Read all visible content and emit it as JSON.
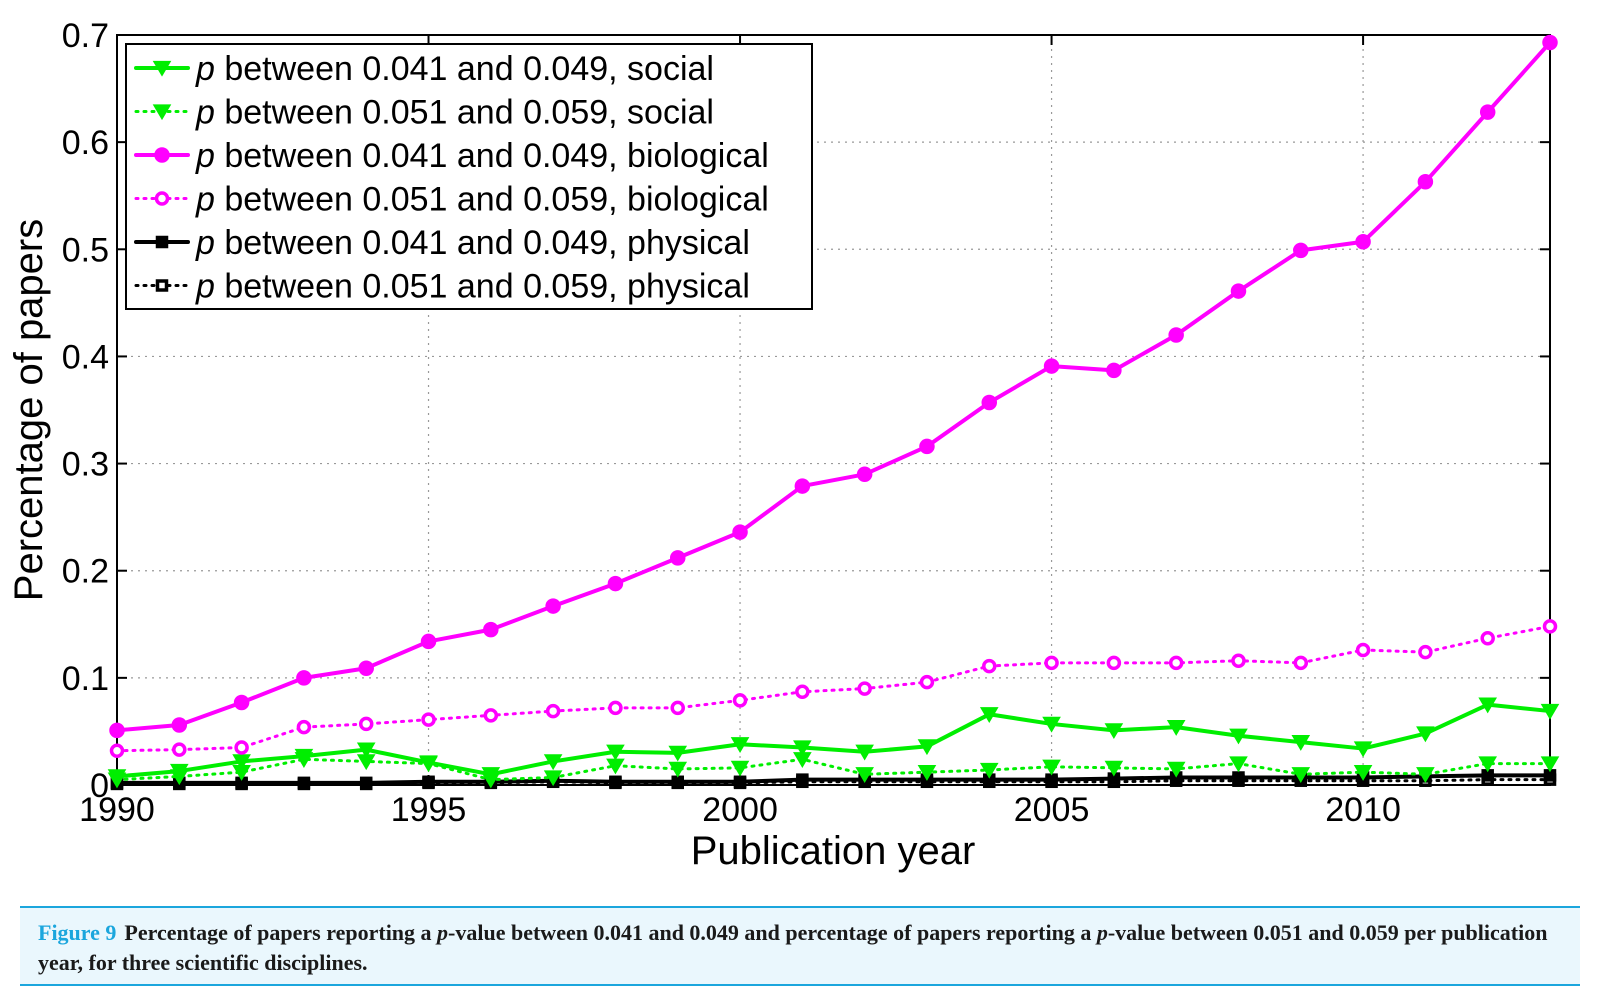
{
  "chart_data": {
    "type": "line",
    "xlabel": "Publication year",
    "ylabel": "Percentage of papers",
    "xlim": [
      1990,
      2013
    ],
    "ylim": [
      0,
      0.7
    ],
    "xticks": [
      "1990",
      "1995",
      "2000",
      "2005",
      "2010"
    ],
    "yticks": [
      "0",
      "0.1",
      "0.2",
      "0.3",
      "0.4",
      "0.5",
      "0.6",
      "0.7"
    ],
    "grid": true,
    "legend_position": "top-left",
    "x": [
      1990,
      1991,
      1992,
      1993,
      1994,
      1995,
      1996,
      1997,
      1998,
      1999,
      2000,
      2001,
      2002,
      2003,
      2004,
      2005,
      2006,
      2007,
      2008,
      2009,
      2010,
      2011,
      2012,
      2013
    ],
    "series": [
      {
        "name": "p between 0.041 and 0.049, social",
        "name_italic": "p",
        "name_rest": " between 0.041 and 0.049, social",
        "color": "#00ee00",
        "line": "solid",
        "marker": "triangle-down",
        "filled": true,
        "values": [
          0.008,
          0.013,
          0.022,
          0.027,
          0.033,
          0.021,
          0.01,
          0.022,
          0.031,
          0.03,
          0.038,
          0.035,
          0.031,
          0.036,
          0.066,
          0.057,
          0.051,
          0.054,
          0.046,
          0.04,
          0.034,
          0.048,
          0.075,
          0.069
        ]
      },
      {
        "name": "p between 0.051 and 0.059, social",
        "name_italic": "p",
        "name_rest": " between 0.051 and 0.059, social",
        "color": "#00ee00",
        "line": "dotted",
        "marker": "triangle-down",
        "filled": true,
        "values": [
          0.005,
          0.008,
          0.012,
          0.024,
          0.022,
          0.02,
          0.005,
          0.007,
          0.018,
          0.015,
          0.016,
          0.024,
          0.01,
          0.012,
          0.014,
          0.017,
          0.016,
          0.015,
          0.02,
          0.01,
          0.012,
          0.01,
          0.02,
          0.02
        ]
      },
      {
        "name": "p between 0.041 and 0.049, biological",
        "name_italic": "p",
        "name_rest": " between 0.041 and 0.049, biological",
        "color": "#ff00ff",
        "line": "solid",
        "marker": "circle",
        "filled": true,
        "values": [
          0.051,
          0.056,
          0.077,
          0.1,
          0.109,
          0.134,
          0.145,
          0.167,
          0.188,
          0.212,
          0.236,
          0.279,
          0.29,
          0.316,
          0.357,
          0.391,
          0.387,
          0.42,
          0.461,
          0.499,
          0.507,
          0.563,
          0.628,
          0.693
        ]
      },
      {
        "name": "p between 0.051 and 0.059, biological",
        "name_italic": "p",
        "name_rest": " between 0.051 and 0.059, biological",
        "color": "#ff00ff",
        "line": "dotted",
        "marker": "circle",
        "filled": false,
        "values": [
          0.032,
          0.033,
          0.035,
          0.054,
          0.057,
          0.061,
          0.065,
          0.069,
          0.072,
          0.072,
          0.079,
          0.087,
          0.09,
          0.096,
          0.111,
          0.114,
          0.114,
          0.114,
          0.116,
          0.114,
          0.126,
          0.124,
          0.137,
          0.148
        ]
      },
      {
        "name": "p between 0.041 and 0.049, physical",
        "name_italic": "p",
        "name_rest": " between 0.041 and 0.049, physical",
        "color": "#000000",
        "line": "solid",
        "marker": "square",
        "filled": true,
        "values": [
          0.002,
          0.002,
          0.002,
          0.002,
          0.002,
          0.003,
          0.003,
          0.004,
          0.003,
          0.003,
          0.003,
          0.005,
          0.005,
          0.005,
          0.005,
          0.005,
          0.006,
          0.007,
          0.007,
          0.007,
          0.007,
          0.008,
          0.009,
          0.009
        ]
      },
      {
        "name": "p between 0.051 and 0.059, physical",
        "name_italic": "p",
        "name_rest": " between 0.051 and 0.059, physical",
        "color": "#000000",
        "line": "dotted",
        "marker": "square",
        "filled": false,
        "values": [
          0.001,
          0.001,
          0.001,
          0.001,
          0.001,
          0.002,
          0.002,
          0.003,
          0.002,
          0.002,
          0.002,
          0.003,
          0.003,
          0.003,
          0.003,
          0.003,
          0.003,
          0.004,
          0.004,
          0.004,
          0.004,
          0.004,
          0.005,
          0.005
        ]
      }
    ]
  },
  "caption": {
    "label": "Figure 9",
    "text_before": "Percentage of papers reporting a ",
    "italic": "p",
    "text_middle": "-value between 0.041 and 0.049 and percentage of papers reporting a ",
    "italic2": "p",
    "text_after": "-value between 0.051 and 0.059 per publication year, for three scientific disciplines."
  }
}
